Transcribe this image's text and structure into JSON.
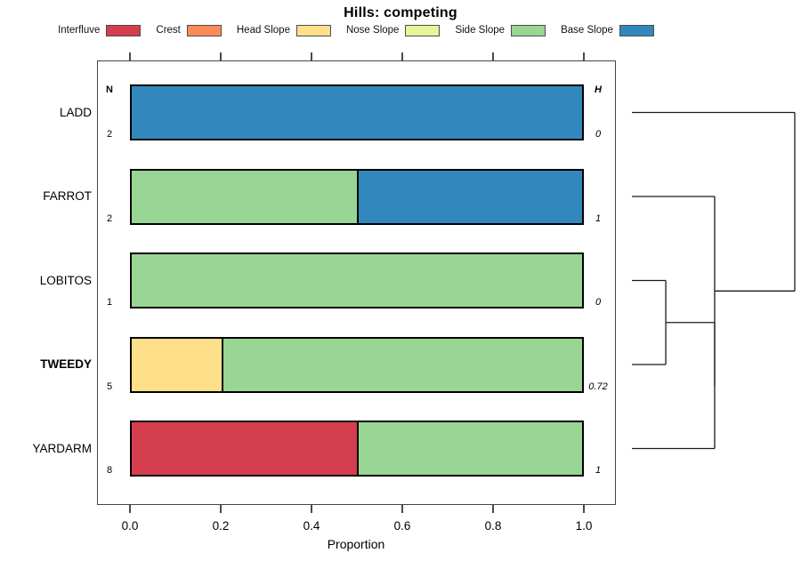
{
  "title": "Hills: competing",
  "axis": {
    "label": "Proportion",
    "ticks": [
      {
        "label": "0.0",
        "value": 0.0
      },
      {
        "label": "0.2",
        "value": 0.2
      },
      {
        "label": "0.4",
        "value": 0.4
      },
      {
        "label": "0.6",
        "value": 0.6
      },
      {
        "label": "0.8",
        "value": 0.8
      },
      {
        "label": "1.0",
        "value": 1.0
      }
    ]
  },
  "columns": {
    "n_header": "N",
    "h_header": "H"
  },
  "chart_data": {
    "type": "bar",
    "subtype": "horizontal-stacked-proportion",
    "title": "Hills: competing",
    "xlabel": "Proportion",
    "xlim": [
      0,
      1
    ],
    "grid": false,
    "legend_position": "top",
    "categories": [
      "LADD",
      "FARROT",
      "LOBITOS",
      "TWEEDY",
      "YARDARM"
    ],
    "emphasized_category": "TWEEDY",
    "n_values": [
      "2",
      "2",
      "1",
      "5",
      "8"
    ],
    "h_values": [
      "0",
      "1",
      "0",
      "0.72",
      "1"
    ],
    "series": [
      {
        "name": "Interfluve",
        "color": "#D53E4F",
        "values": [
          0,
          0,
          0,
          0,
          0.5
        ]
      },
      {
        "name": "Crest",
        "color": "#FC8D59",
        "values": [
          0,
          0,
          0,
          0,
          0
        ]
      },
      {
        "name": "Head Slope",
        "color": "#FEE08B",
        "values": [
          0,
          0,
          0,
          0.2,
          0
        ]
      },
      {
        "name": "Nose Slope",
        "color": "#E6F598",
        "values": [
          0,
          0,
          0,
          0,
          0
        ]
      },
      {
        "name": "Side Slope",
        "color": "#99D594",
        "values": [
          0,
          0.5,
          1.0,
          0.8,
          0.5
        ]
      },
      {
        "name": "Base Slope",
        "color": "#3288BD",
        "values": [
          1.0,
          0.5,
          0,
          0,
          0
        ]
      }
    ],
    "dendrogram": {
      "leaves": [
        "LADD",
        "FARROT",
        "LOBITOS",
        "TWEEDY",
        "YARDARM"
      ],
      "merges": [
        {
          "a": {
            "type": "leaf",
            "index": 2
          },
          "b": {
            "type": "leaf",
            "index": 3
          },
          "height": 0.208
        },
        {
          "a": {
            "type": "cluster",
            "index": 0
          },
          "b": {
            "type": "leaf",
            "index": 4
          },
          "height": 0.508
        },
        {
          "a": {
            "type": "leaf",
            "index": 1
          },
          "b": {
            "type": "cluster",
            "index": 1
          },
          "height": 0.508
        },
        {
          "a": {
            "type": "leaf",
            "index": 0
          },
          "b": {
            "type": "cluster",
            "index": 2
          },
          "height": 1.0
        }
      ]
    }
  }
}
